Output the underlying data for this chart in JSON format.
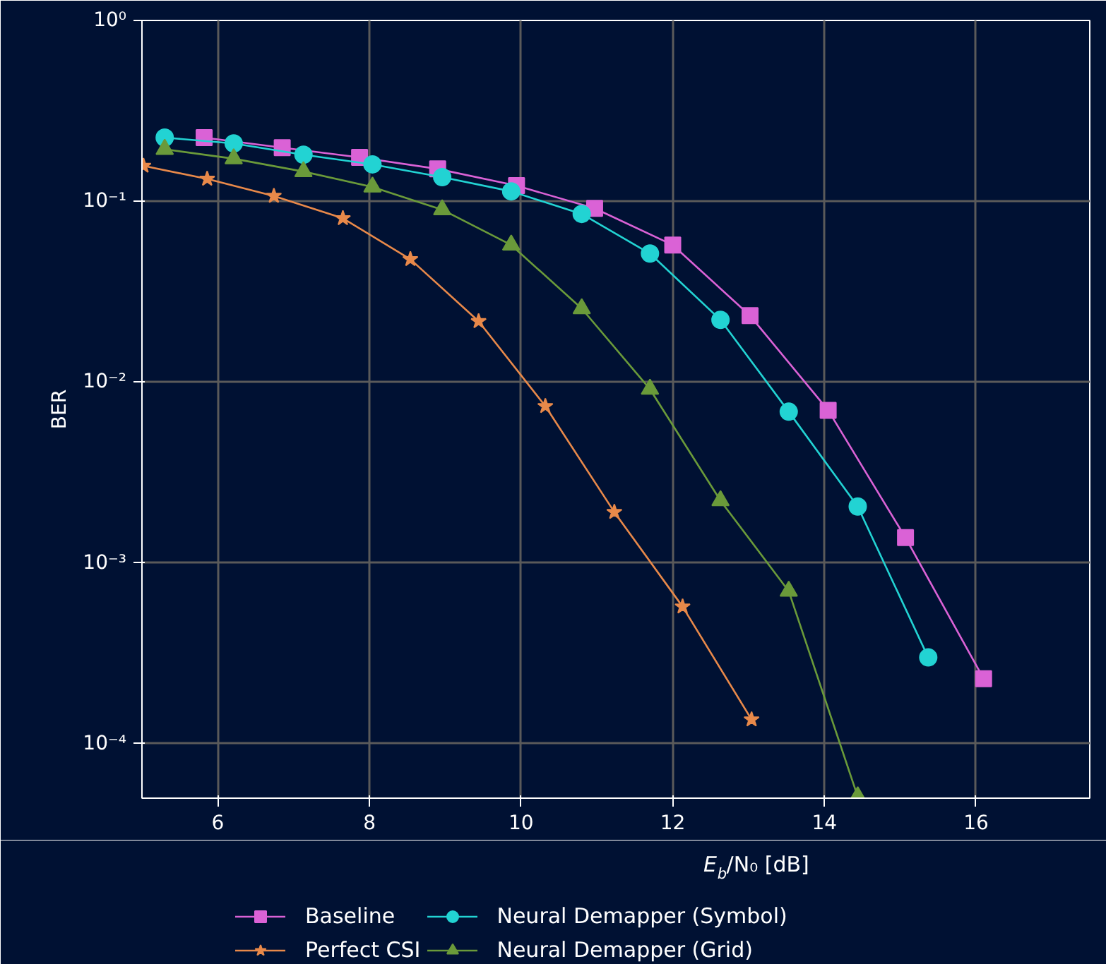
{
  "chart_data": {
    "type": "line",
    "xlabel": "E$_{b}$/N₀ [dB]",
    "ylabel": "BER",
    "log": "y",
    "xlim": [
      5,
      17.5
    ],
    "ylim": [
      5e-05,
      1
    ],
    "xticks": [
      6,
      8,
      10,
      12,
      14,
      16
    ],
    "yticks": [
      {
        "value": 1,
        "label": "10⁰"
      },
      {
        "value": 0.1,
        "label": "10⁻¹"
      },
      {
        "value": 0.01,
        "label": "10⁻²"
      },
      {
        "value": 0.001,
        "label": "10⁻³"
      },
      {
        "value": 0.0001,
        "label": "10⁻⁴"
      }
    ],
    "grid": true,
    "legend": "bottom",
    "series": [
      {
        "name": "Baseline",
        "color": "#da62d6",
        "marker": "square",
        "x": [
          5.82,
          6.85,
          7.87,
          8.9,
          9.94,
          10.97,
          12.0,
          13.02,
          14.05,
          15.07,
          16.1
        ],
        "values": [
          0.225,
          0.198,
          0.175,
          0.151,
          0.122,
          0.0914,
          0.0573,
          0.0233,
          0.00698,
          0.00138,
          0.000229
        ]
      },
      {
        "name": "Perfect CSI",
        "color": "#e8894a",
        "marker": "star",
        "x": [
          5.02,
          5.86,
          6.74,
          7.65,
          8.54,
          9.44,
          10.32,
          11.23,
          12.13,
          13.04
        ],
        "values": [
          0.157,
          0.133,
          0.107,
          0.0805,
          0.0478,
          0.0217,
          0.00736,
          0.00191,
          0.000573,
          0.000136
        ]
      },
      {
        "name": "Neural Demapper (Symbol)",
        "color": "#22d3d3",
        "marker": "circle",
        "x": [
          5.3,
          6.21,
          7.13,
          8.04,
          8.96,
          9.87,
          10.8,
          11.7,
          12.63,
          13.53,
          14.44,
          15.37
        ],
        "values": [
          0.225,
          0.209,
          0.181,
          0.16,
          0.136,
          0.1135,
          0.0851,
          0.0514,
          0.0221,
          0.00686,
          0.00205,
          0.0003
        ]
      },
      {
        "name": "Neural Demapper (Grid)",
        "color": "#6a9a3a",
        "marker": "triangle",
        "x": [
          5.3,
          6.21,
          7.13,
          8.04,
          8.96,
          9.87,
          10.8,
          11.7,
          12.63,
          13.53,
          14.44
        ],
        "values": [
          0.194,
          0.172,
          0.146,
          0.12,
          0.0898,
          0.0573,
          0.0255,
          0.00914,
          0.00221,
          0.000698,
          5.1e-05
        ]
      }
    ]
  }
}
